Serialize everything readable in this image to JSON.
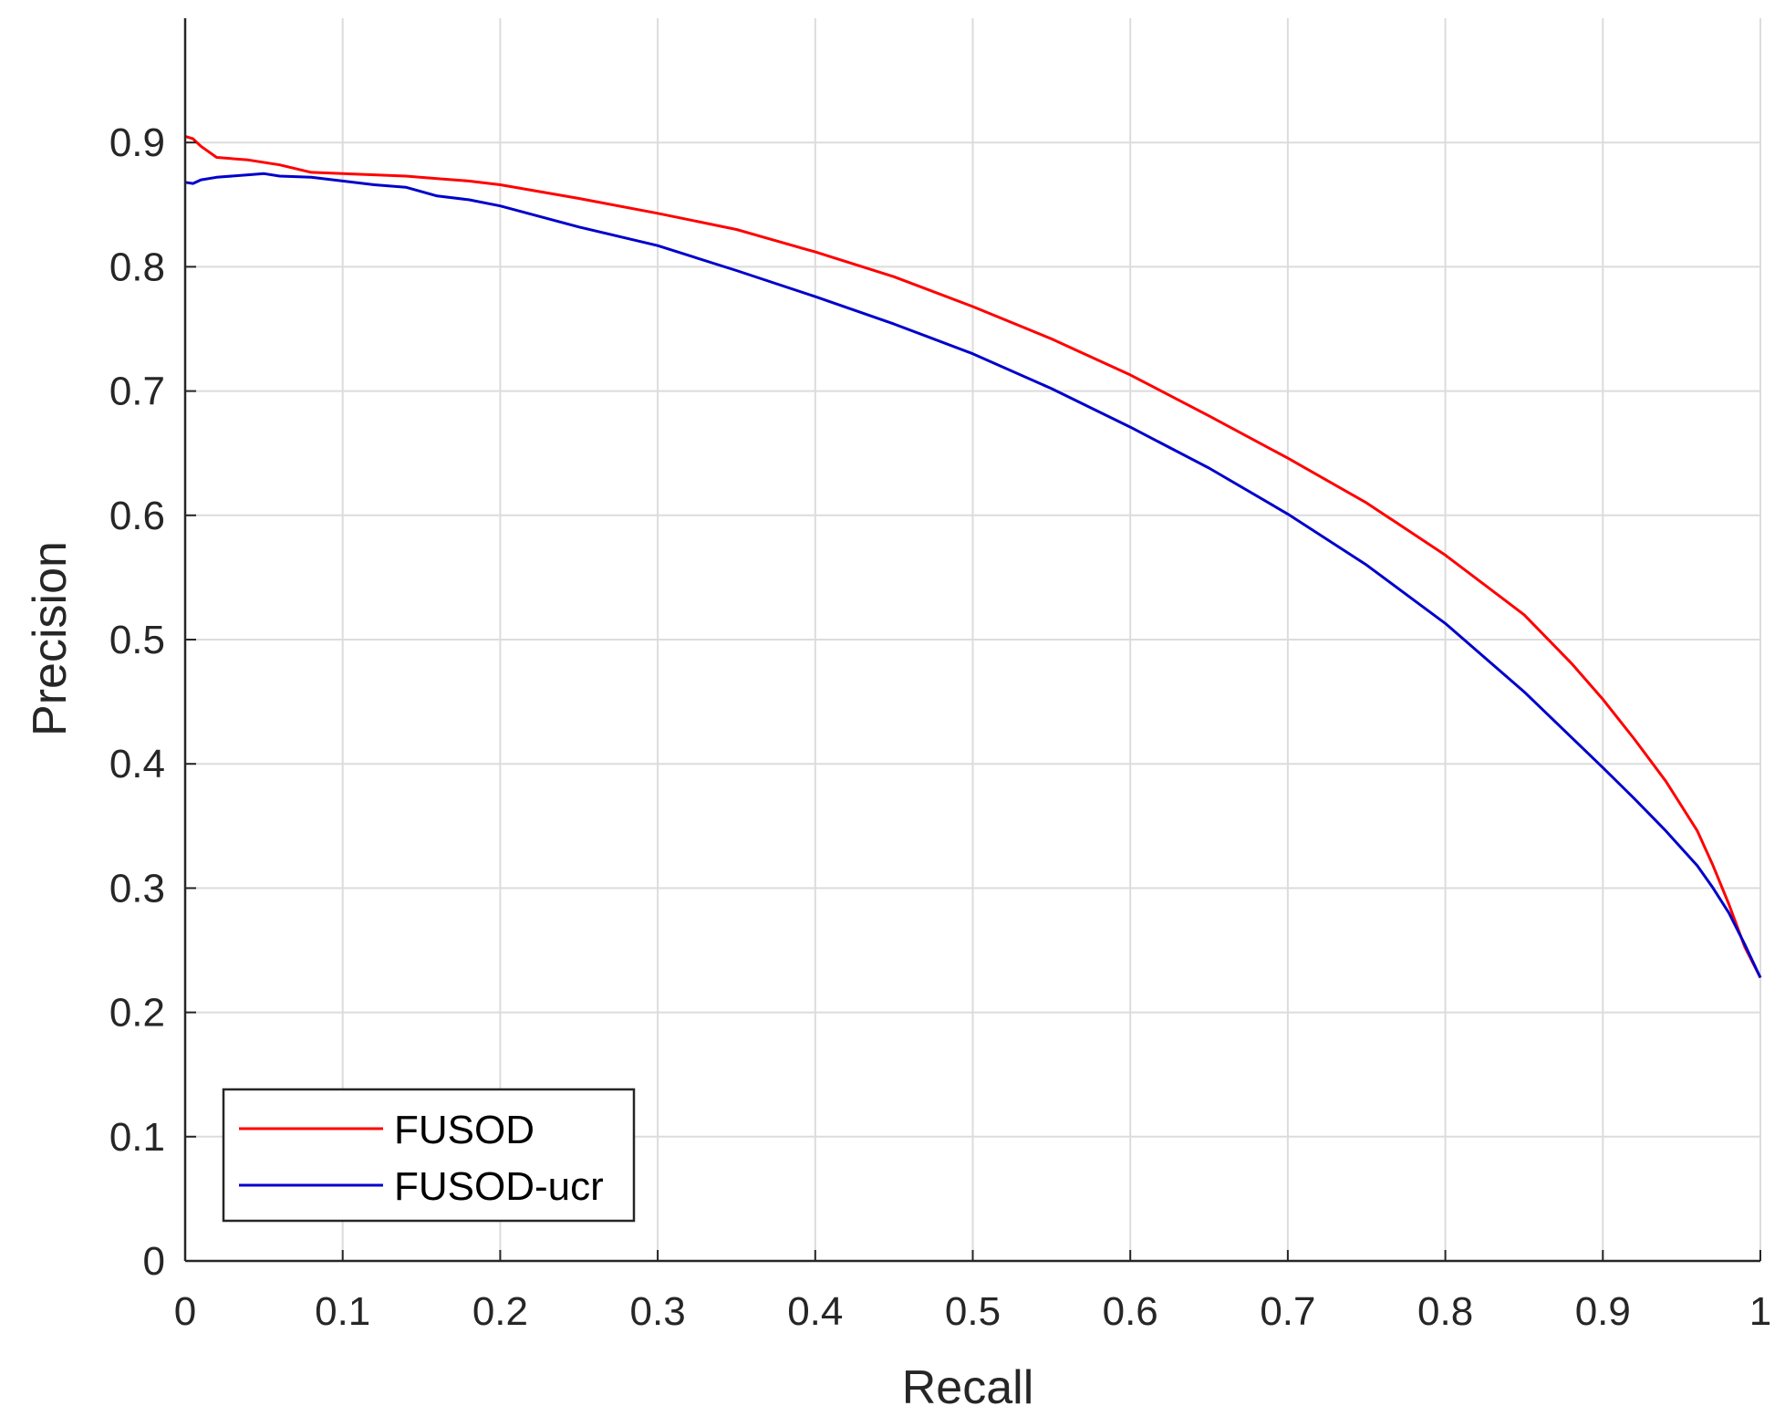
{
  "chart_data": {
    "type": "line",
    "xlabel": "Recall",
    "ylabel": "Precision",
    "xlim": [
      0,
      1
    ],
    "ylim": [
      0,
      1
    ],
    "xticks": [
      "0",
      "0.1",
      "0.2",
      "0.3",
      "0.4",
      "0.5",
      "0.6",
      "0.7",
      "0.8",
      "0.9",
      "1"
    ],
    "yticks": [
      "0",
      "0.1",
      "0.2",
      "0.3",
      "0.4",
      "0.5",
      "0.6",
      "0.7",
      "0.8",
      "0.9"
    ],
    "grid": true,
    "legend_position": "bottom-left",
    "series": [
      {
        "name": "FUSOD",
        "color": "#ff0000",
        "x": [
          0,
          0.005,
          0.01,
          0.02,
          0.04,
          0.06,
          0.08,
          0.1,
          0.12,
          0.14,
          0.16,
          0.18,
          0.2,
          0.25,
          0.3,
          0.35,
          0.4,
          0.45,
          0.5,
          0.55,
          0.6,
          0.65,
          0.7,
          0.75,
          0.8,
          0.85,
          0.88,
          0.9,
          0.92,
          0.94,
          0.96,
          0.97,
          0.98,
          0.99,
          1.0
        ],
        "y": [
          0.905,
          0.903,
          0.897,
          0.888,
          0.886,
          0.882,
          0.876,
          0.875,
          0.874,
          0.873,
          0.871,
          0.869,
          0.866,
          0.855,
          0.843,
          0.83,
          0.812,
          0.792,
          0.768,
          0.742,
          0.713,
          0.68,
          0.646,
          0.61,
          0.568,
          0.52,
          0.481,
          0.452,
          0.42,
          0.386,
          0.346,
          0.318,
          0.287,
          0.253,
          0.228
        ]
      },
      {
        "name": "FUSOD-ucr",
        "color": "#0000cc",
        "x": [
          0,
          0.005,
          0.01,
          0.02,
          0.04,
          0.05,
          0.06,
          0.08,
          0.1,
          0.12,
          0.14,
          0.16,
          0.18,
          0.2,
          0.25,
          0.3,
          0.35,
          0.4,
          0.45,
          0.5,
          0.55,
          0.6,
          0.65,
          0.7,
          0.75,
          0.8,
          0.85,
          0.9,
          0.92,
          0.94,
          0.96,
          0.97,
          0.98,
          0.99,
          1.0
        ],
        "y": [
          0.868,
          0.867,
          0.87,
          0.872,
          0.874,
          0.875,
          0.873,
          0.872,
          0.869,
          0.866,
          0.864,
          0.857,
          0.854,
          0.849,
          0.832,
          0.817,
          0.797,
          0.776,
          0.754,
          0.73,
          0.702,
          0.671,
          0.638,
          0.601,
          0.56,
          0.513,
          0.458,
          0.397,
          0.372,
          0.346,
          0.318,
          0.3,
          0.28,
          0.255,
          0.228
        ]
      }
    ]
  }
}
